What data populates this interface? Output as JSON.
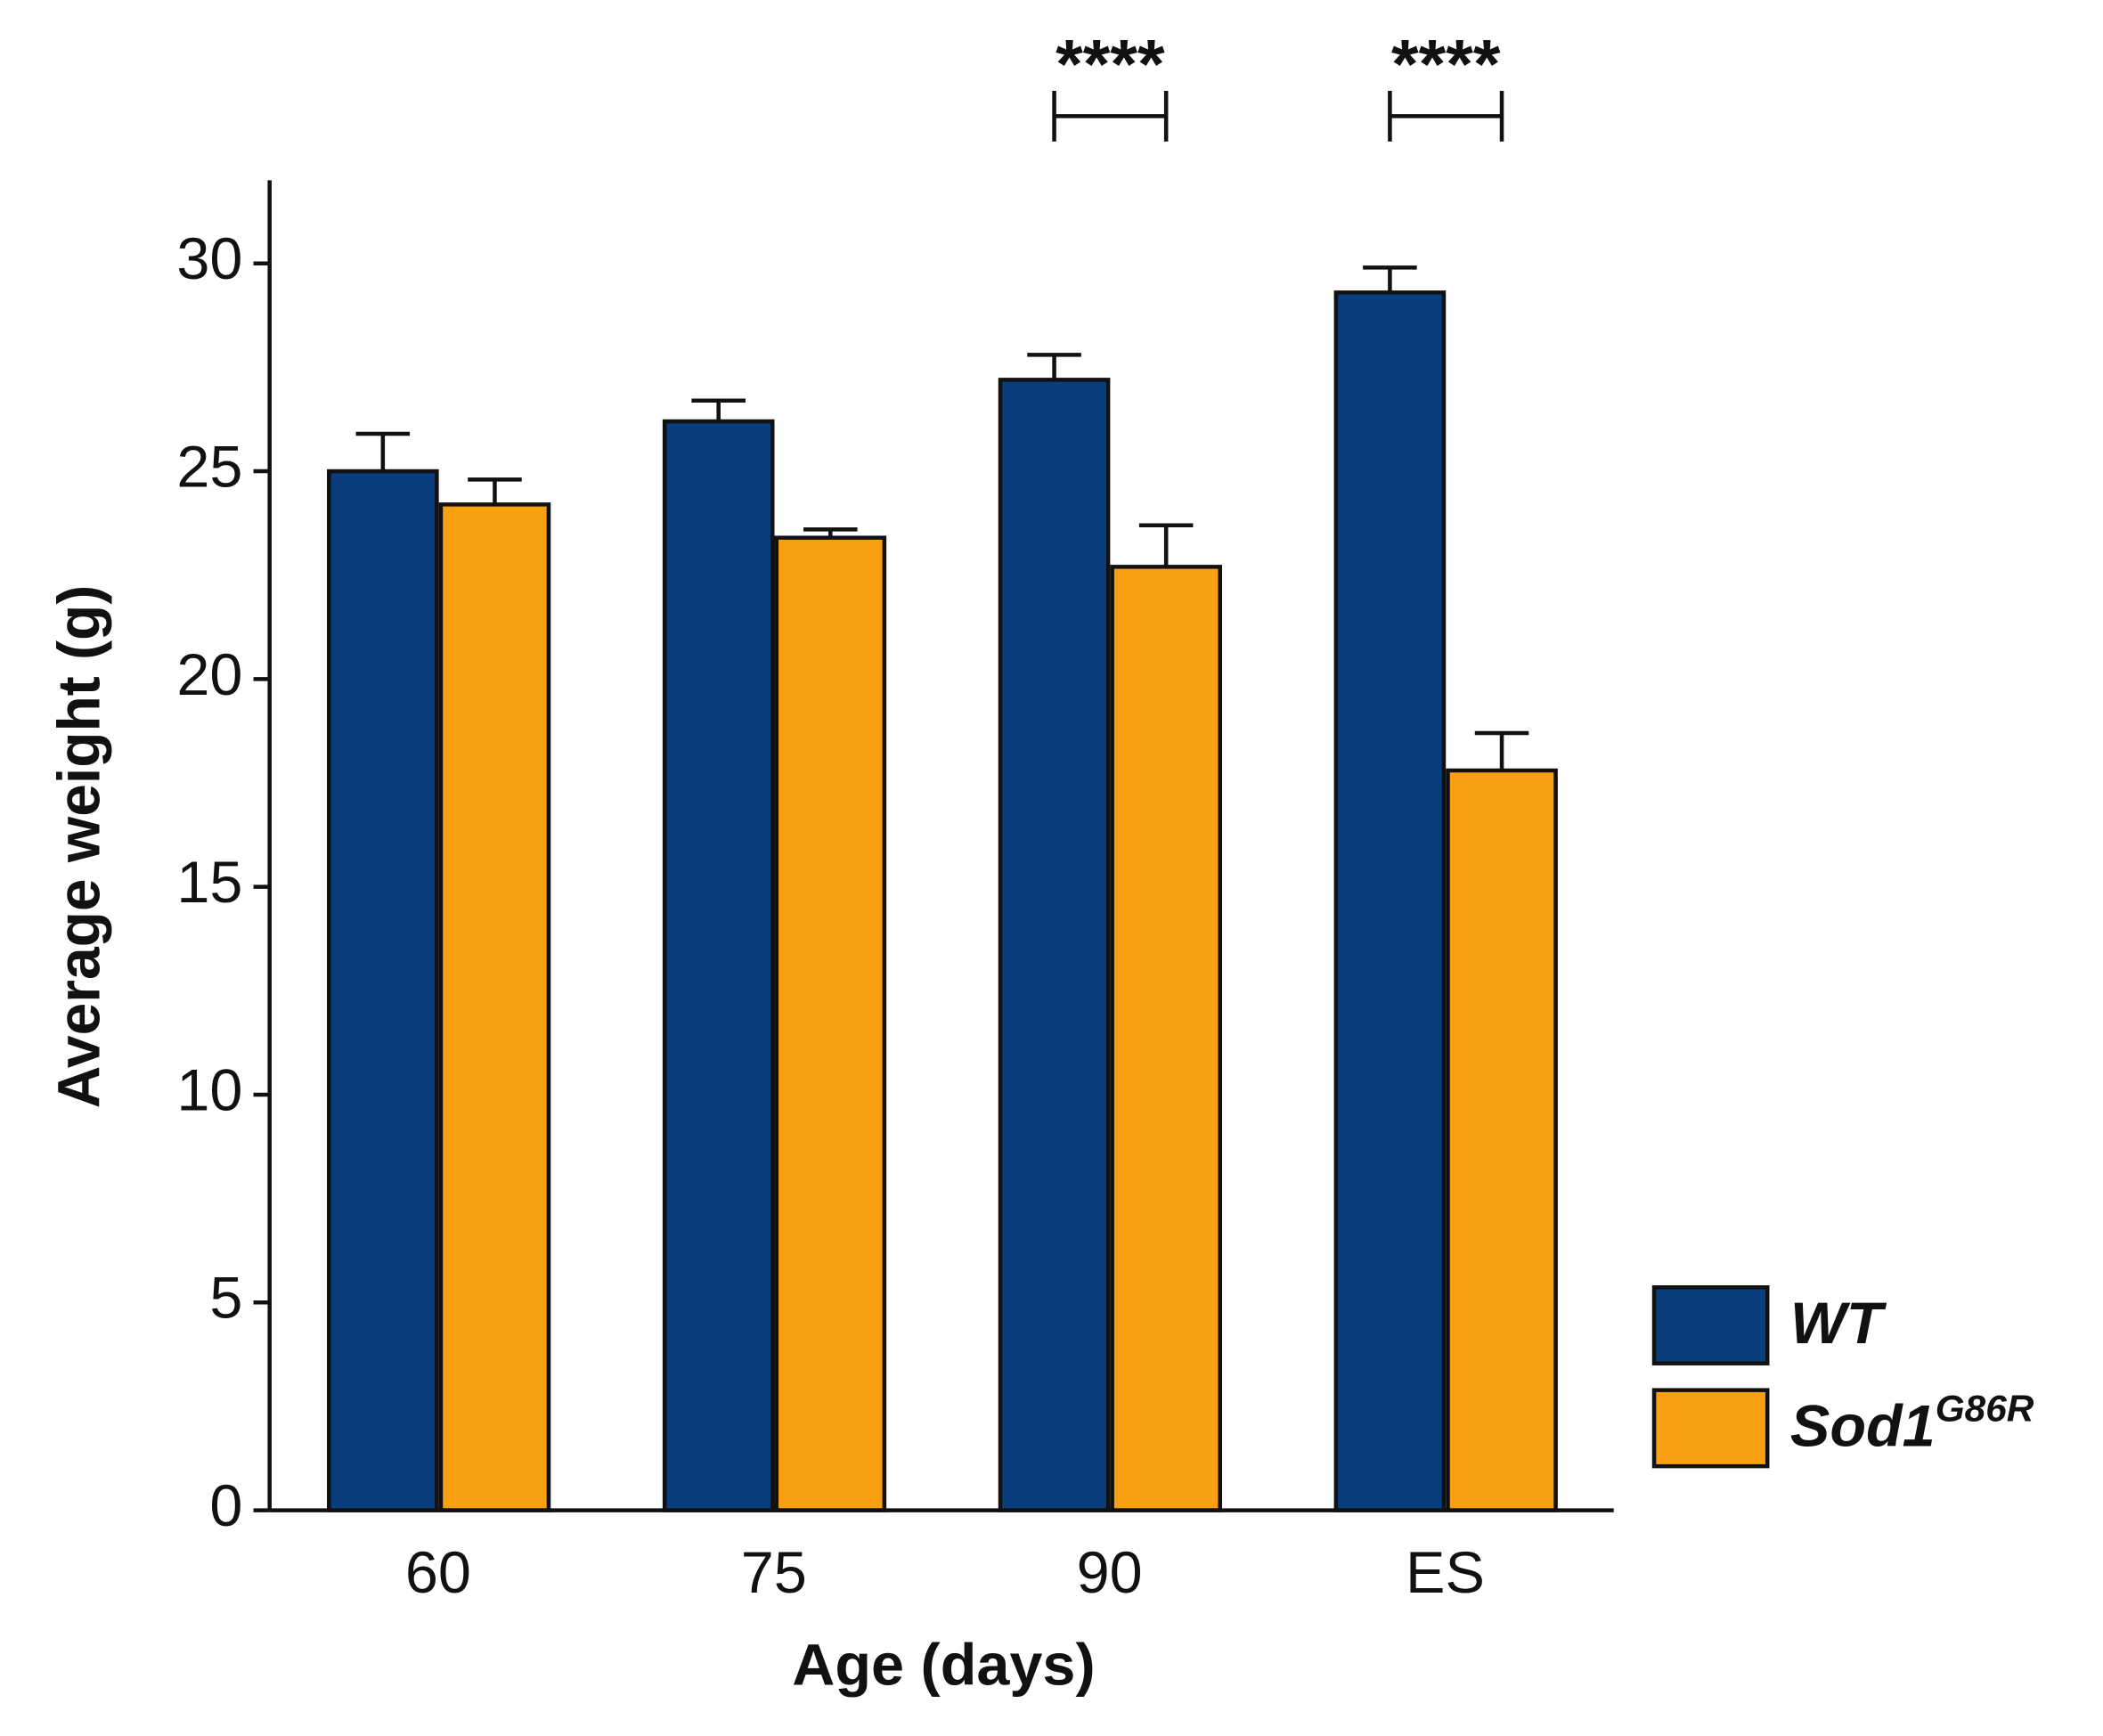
{
  "chart_data": {
    "type": "bar",
    "x_label": "Age (days)",
    "y_label": "Average weight (g)",
    "categories": [
      "60",
      "75",
      "90",
      "ES"
    ],
    "series": [
      {
        "name": "WT",
        "color": "#0a3d7e",
        "values": [
          25.0,
          26.2,
          27.2,
          29.3
        ],
        "errors": [
          0.9,
          0.5,
          0.6,
          0.6
        ]
      },
      {
        "name": "Sod1",
        "name_superscript": "G86R",
        "color": "#f9a012",
        "values": [
          24.2,
          23.4,
          22.7,
          17.8
        ],
        "errors": [
          0.6,
          0.2,
          1.0,
          0.9
        ]
      }
    ],
    "ylim": [
      0,
      32
    ],
    "yticks": [
      0,
      5,
      10,
      15,
      20,
      25,
      30
    ],
    "annotations": [
      {
        "category": "90",
        "text": "****"
      },
      {
        "category": "ES",
        "text": "****"
      }
    ],
    "legend": "lower right"
  }
}
